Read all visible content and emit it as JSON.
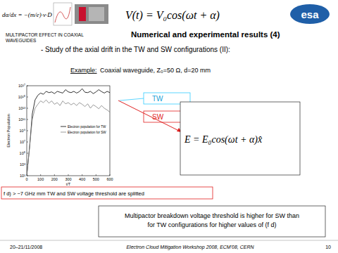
{
  "header": {
    "formula_left": "dα/dx = −(m/e)·v·D",
    "formula_right": "V(t) = V₀cos(ωt + α)",
    "logo": "esa",
    "section_line1": "MULTIPACTOR   EFFECT   IN   COAXIAL",
    "section_line2": "WAVEGUIDES",
    "title": "Numerical and experimental results (4)"
  },
  "subtitle": "- Study of the axial drift in the TW and SW configurations (II):",
  "example": {
    "label": "Example:",
    "text": "Coaxial waveguide, Z₀=50 Ω, d=20 mm"
  },
  "callouts": {
    "tw": "TW",
    "sw": "SW"
  },
  "formula_box": "E = E₀cos(ωt + α)x̂",
  "note": "f d) > ~7 GHz mm TW and SW voltage threshold are splitted",
  "conclusion_lines": [
    "Multipactor breakdown voltage threshold is higher for SW than",
    "for TW configurations for higher values of (f d)"
  ],
  "footer": {
    "date": "20–21/11/2008",
    "event": "Electron Cloud Mitigation Workshop 2008, ECM'08, CERN",
    "page": "10"
  },
  "chart_data": {
    "type": "line",
    "x_label": "t/T",
    "y_label": "Electron Population",
    "x": [
      0,
      20,
      40,
      60,
      80,
      100,
      120,
      140,
      160,
      180,
      200,
      220,
      240,
      260,
      280,
      300,
      320,
      340,
      360,
      380,
      400,
      420,
      440,
      460,
      480,
      500,
      520,
      540,
      560,
      580,
      600
    ],
    "series": [
      {
        "name": "Electron population for TW",
        "color": "#000000",
        "values": [
          10,
          1000000.0,
          1000000000000.0,
          300000000000000.0,
          2000000000000000.0,
          5000000000000000.0,
          3000000000000000.0,
          1e+16,
          6000000000000000.0,
          8000000000000000.0,
          4000000000000000.0,
          1e+16,
          7000000000000000.0,
          5000000000000000.0,
          2e+16,
          8000000000000000.0,
          6000000000000000.0,
          1e+16,
          5000000000000000.0,
          9000000000000000.0,
          3e+16,
          7000000000000000.0,
          6000000000000000.0,
          1e+16,
          4000000000000000.0,
          8000000000000000.0,
          2e+16,
          9000000000000000.0,
          5000000000000000.0,
          1e+16,
          6000000000000000.0
        ]
      },
      {
        "name": "Electron population for SW",
        "color": "#808080",
        "values": [
          10,
          1000000.0,
          100000000000.0,
          10000000000000.0,
          50000000000000.0,
          200000000000000.0,
          100000000000000.0,
          300000000000000.0,
          80000000000000.0,
          200000000000000.0,
          50000000000000.0,
          100000000000000.0,
          30000000000000.0,
          200000000000000.0,
          60000000000000.0,
          100000000000000.0,
          40000000000000.0,
          80000000000000.0,
          30000000000000.0,
          100000000000000.0,
          50000000000000.0,
          20000000000000.0,
          60000000000000.0,
          10000000000000.0,
          40000000000000.0,
          20000000000000.0,
          8000000000000.0,
          30000000000000.0,
          10000000000000.0,
          5000000000000.0,
          2000000000000.0
        ]
      }
    ],
    "xlim": [
      0,
      600
    ],
    "xticks": [
      0,
      100,
      200,
      300,
      400,
      500,
      600
    ],
    "ylim": [
      10,
      1e+17
    ],
    "yticks": [
      {
        "value": 10,
        "label": "10¹"
      },
      {
        "value": 1000,
        "label": "10³"
      },
      {
        "value": 100000,
        "label": "10⁵"
      },
      {
        "value": 10000000.0,
        "label": "10⁷"
      },
      {
        "value": 1000000000.0,
        "label": "10⁹"
      },
      {
        "value": 100000000000.0,
        "label": "10¹¹"
      },
      {
        "value": 10000000000000.0,
        "label": "10¹³"
      },
      {
        "value": 1000000000000000.0,
        "label": "10¹⁵"
      },
      {
        "value": 1e+17,
        "label": "10¹⁷"
      }
    ],
    "log": "y",
    "grid": false,
    "legend": "right"
  }
}
